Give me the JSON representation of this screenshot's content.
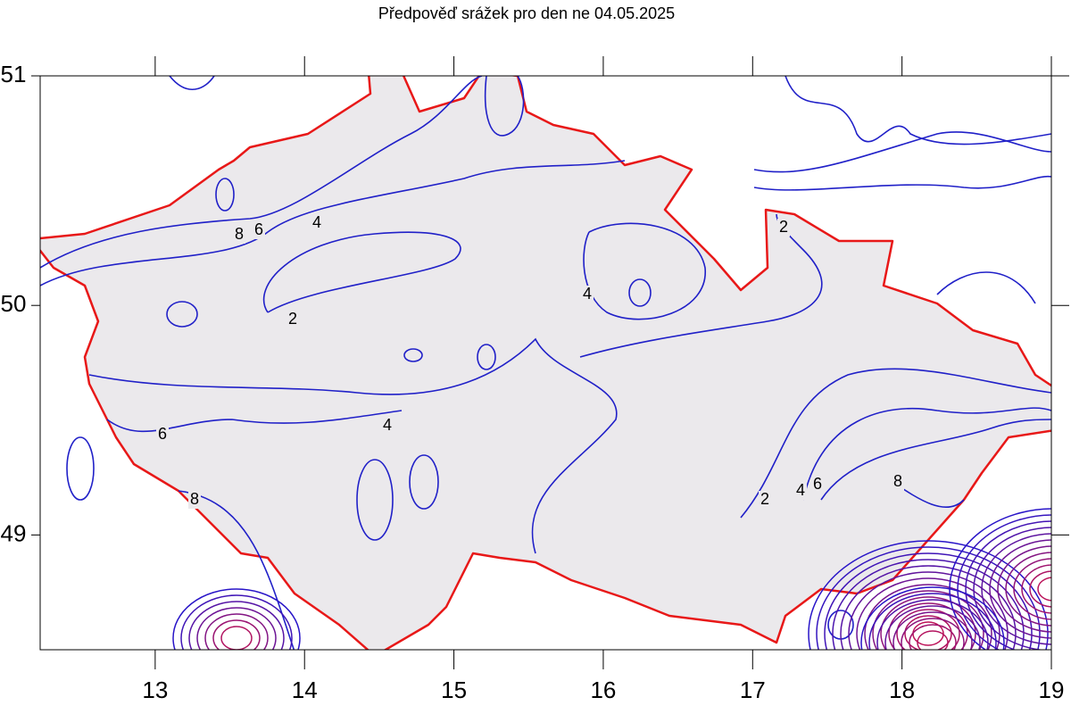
{
  "chart_data": {
    "type": "contour",
    "title": "Předpověď srážek pro den ne 04.05.2025",
    "xlim": [
      12.23,
      19
    ],
    "ylim": [
      48.5,
      51
    ],
    "xticks": [
      13,
      14,
      15,
      16,
      17,
      18,
      19
    ],
    "yticks": [
      49,
      50,
      51
    ],
    "contour_labels": [
      8,
      6,
      4,
      2,
      4,
      2,
      6,
      4,
      8,
      2,
      4,
      6,
      8
    ]
  }
}
